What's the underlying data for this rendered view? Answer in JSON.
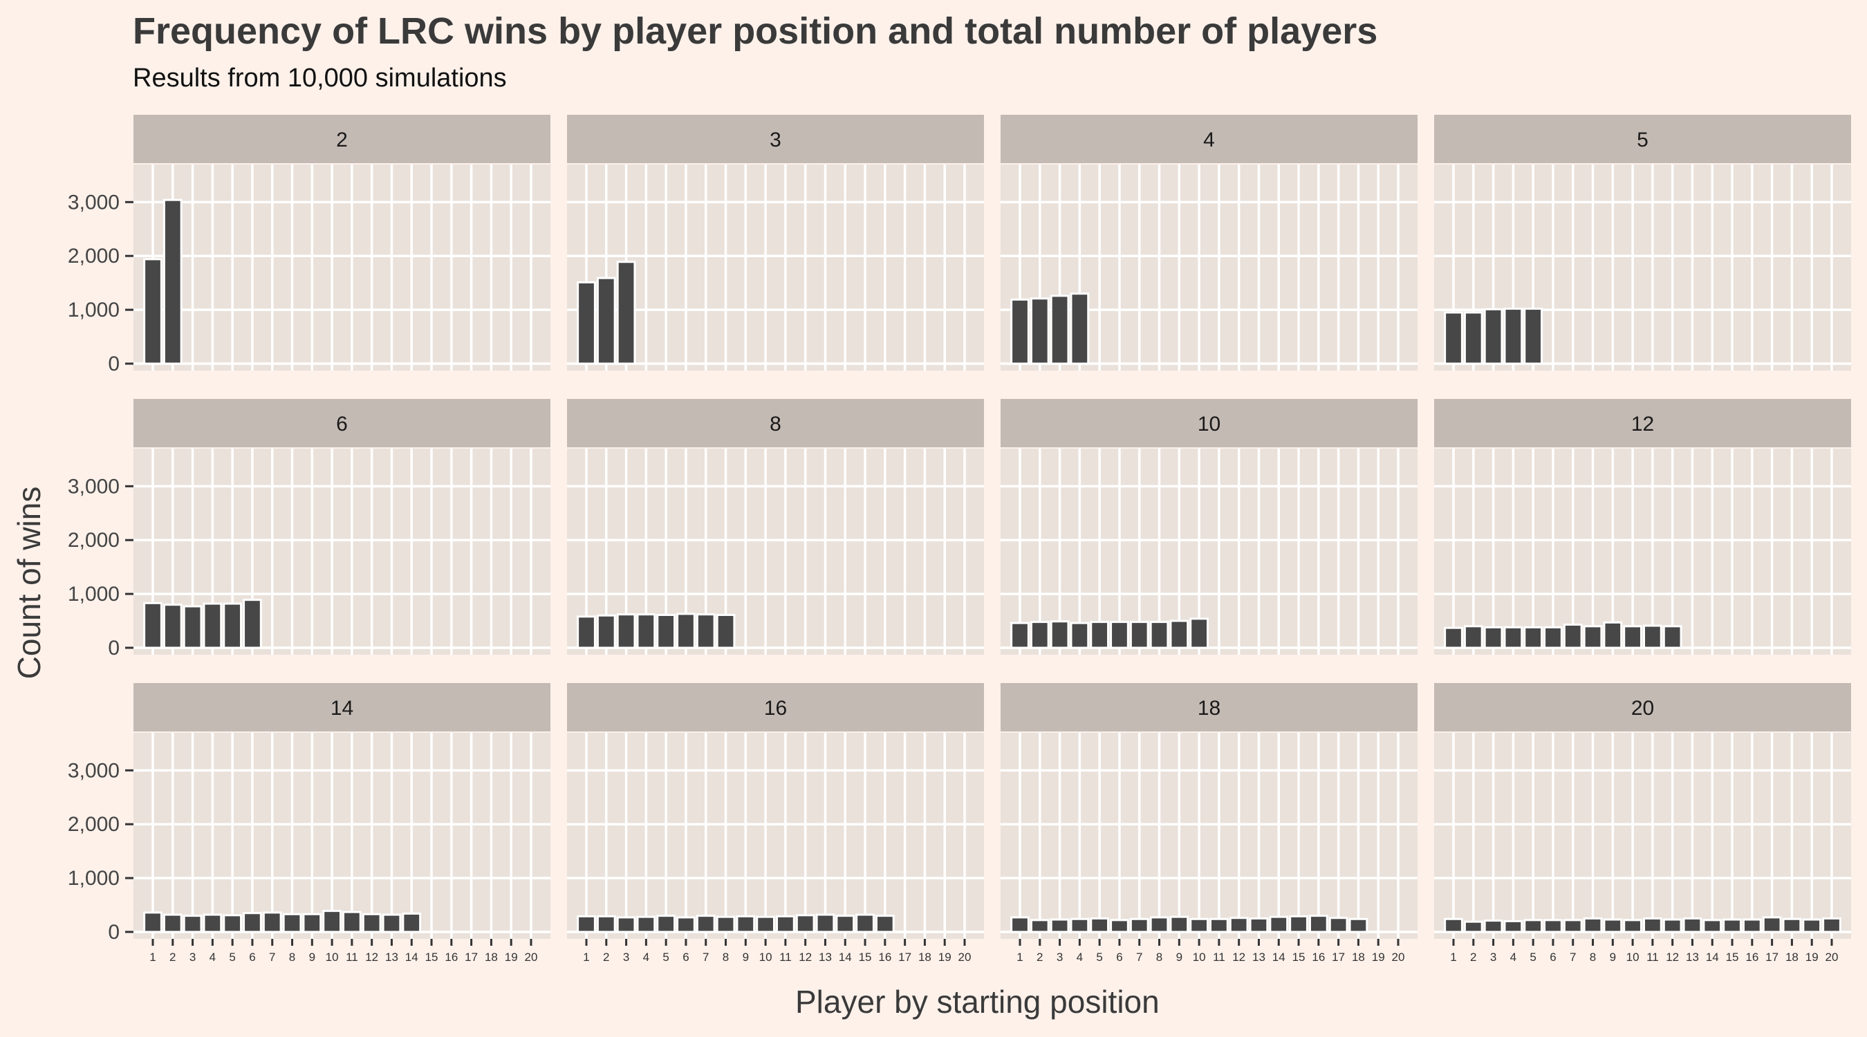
{
  "chart_data": {
    "type": "bar",
    "title": "Frequency of LRC wins by player position and total number of players",
    "subtitle": "Results from 10,000 simulations",
    "xlabel": "Player by starting position",
    "ylabel": "Count of wins",
    "ylim": [
      0,
      3800
    ],
    "yticks": [
      0,
      1000,
      2000,
      3000
    ],
    "ytick_labels": [
      "0",
      "1,000",
      "2,000",
      "3,000"
    ],
    "categories": [
      "1",
      "2",
      "3",
      "4",
      "5",
      "6",
      "7",
      "8",
      "9",
      "10",
      "11",
      "12",
      "13",
      "14",
      "15",
      "16",
      "17",
      "18",
      "19",
      "20"
    ],
    "grid": true,
    "facet_by": "total number of players",
    "facets": [
      {
        "label": "2",
        "values": [
          1940,
          3040
        ]
      },
      {
        "label": "3",
        "values": [
          1510,
          1590,
          1890
        ]
      },
      {
        "label": "4",
        "values": [
          1190,
          1210,
          1260,
          1300
        ]
      },
      {
        "label": "5",
        "values": [
          950,
          950,
          1010,
          1020,
          1020
        ]
      },
      {
        "label": "6",
        "values": [
          830,
          800,
          770,
          820,
          820,
          890
        ]
      },
      {
        "label": "8",
        "values": [
          580,
          600,
          620,
          620,
          610,
          630,
          620,
          610
        ]
      },
      {
        "label": "10",
        "values": [
          460,
          480,
          490,
          460,
          480,
          480,
          480,
          480,
          500,
          540
        ]
      },
      {
        "label": "12",
        "values": [
          370,
          400,
          380,
          380,
          380,
          380,
          430,
          400,
          470,
          400,
          410,
          400
        ]
      },
      {
        "label": "14",
        "values": [
          360,
          320,
          300,
          320,
          310,
          350,
          360,
          330,
          330,
          390,
          370,
          330,
          320,
          340
        ]
      },
      {
        "label": "16",
        "values": [
          290,
          290,
          270,
          280,
          300,
          270,
          300,
          280,
          290,
          280,
          290,
          310,
          320,
          300,
          320,
          300
        ]
      },
      {
        "label": "18",
        "values": [
          270,
          220,
          230,
          240,
          250,
          220,
          240,
          270,
          280,
          240,
          240,
          260,
          250,
          280,
          290,
          300,
          260,
          240
        ]
      },
      {
        "label": "20",
        "values": [
          240,
          190,
          210,
          200,
          220,
          220,
          220,
          250,
          230,
          220,
          250,
          230,
          250,
          220,
          230,
          230,
          270,
          240,
          230,
          250
        ]
      }
    ]
  },
  "colors": {
    "page_background": "#fdf1ea",
    "panel_background": "#e9e1da",
    "strip_background": "#c4bab4",
    "bar_fill": "#474747",
    "bar_outline": "#ffffff",
    "grid": "#ffffff"
  }
}
